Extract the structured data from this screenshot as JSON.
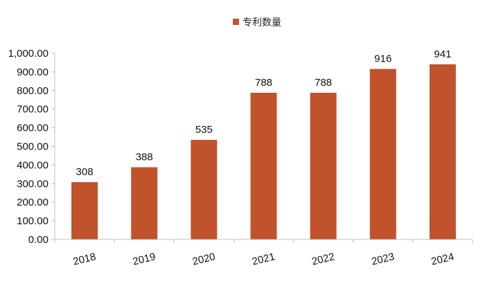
{
  "chart_data": {
    "type": "bar",
    "categories": [
      "2018",
      "2019",
      "2020",
      "2021",
      "2022",
      "2023",
      "2024"
    ],
    "series": [
      {
        "name": "专利数量",
        "values": [
          308,
          388,
          535,
          788,
          788,
          916,
          941
        ],
        "color": "#C0532B"
      }
    ],
    "data_labels": [
      "308",
      "388",
      "535",
      "788",
      "788",
      "916",
      "941"
    ],
    "ylim": [
      0,
      1000
    ],
    "yticks": [
      0,
      100,
      200,
      300,
      400,
      500,
      600,
      700,
      800,
      900,
      1000
    ],
    "ytick_labels": [
      "0.00",
      "100.00",
      "200.00",
      "300.00",
      "400.00",
      "500.00",
      "600.00",
      "700.00",
      "800.00",
      "900.00",
      "1,000.00"
    ],
    "grid": false,
    "legend_position": "top-center",
    "title": "",
    "xlabel": "",
    "ylabel": ""
  },
  "colors": {
    "bar": "#C0532B",
    "axis": "#bfbfbf",
    "text": "#111111"
  }
}
